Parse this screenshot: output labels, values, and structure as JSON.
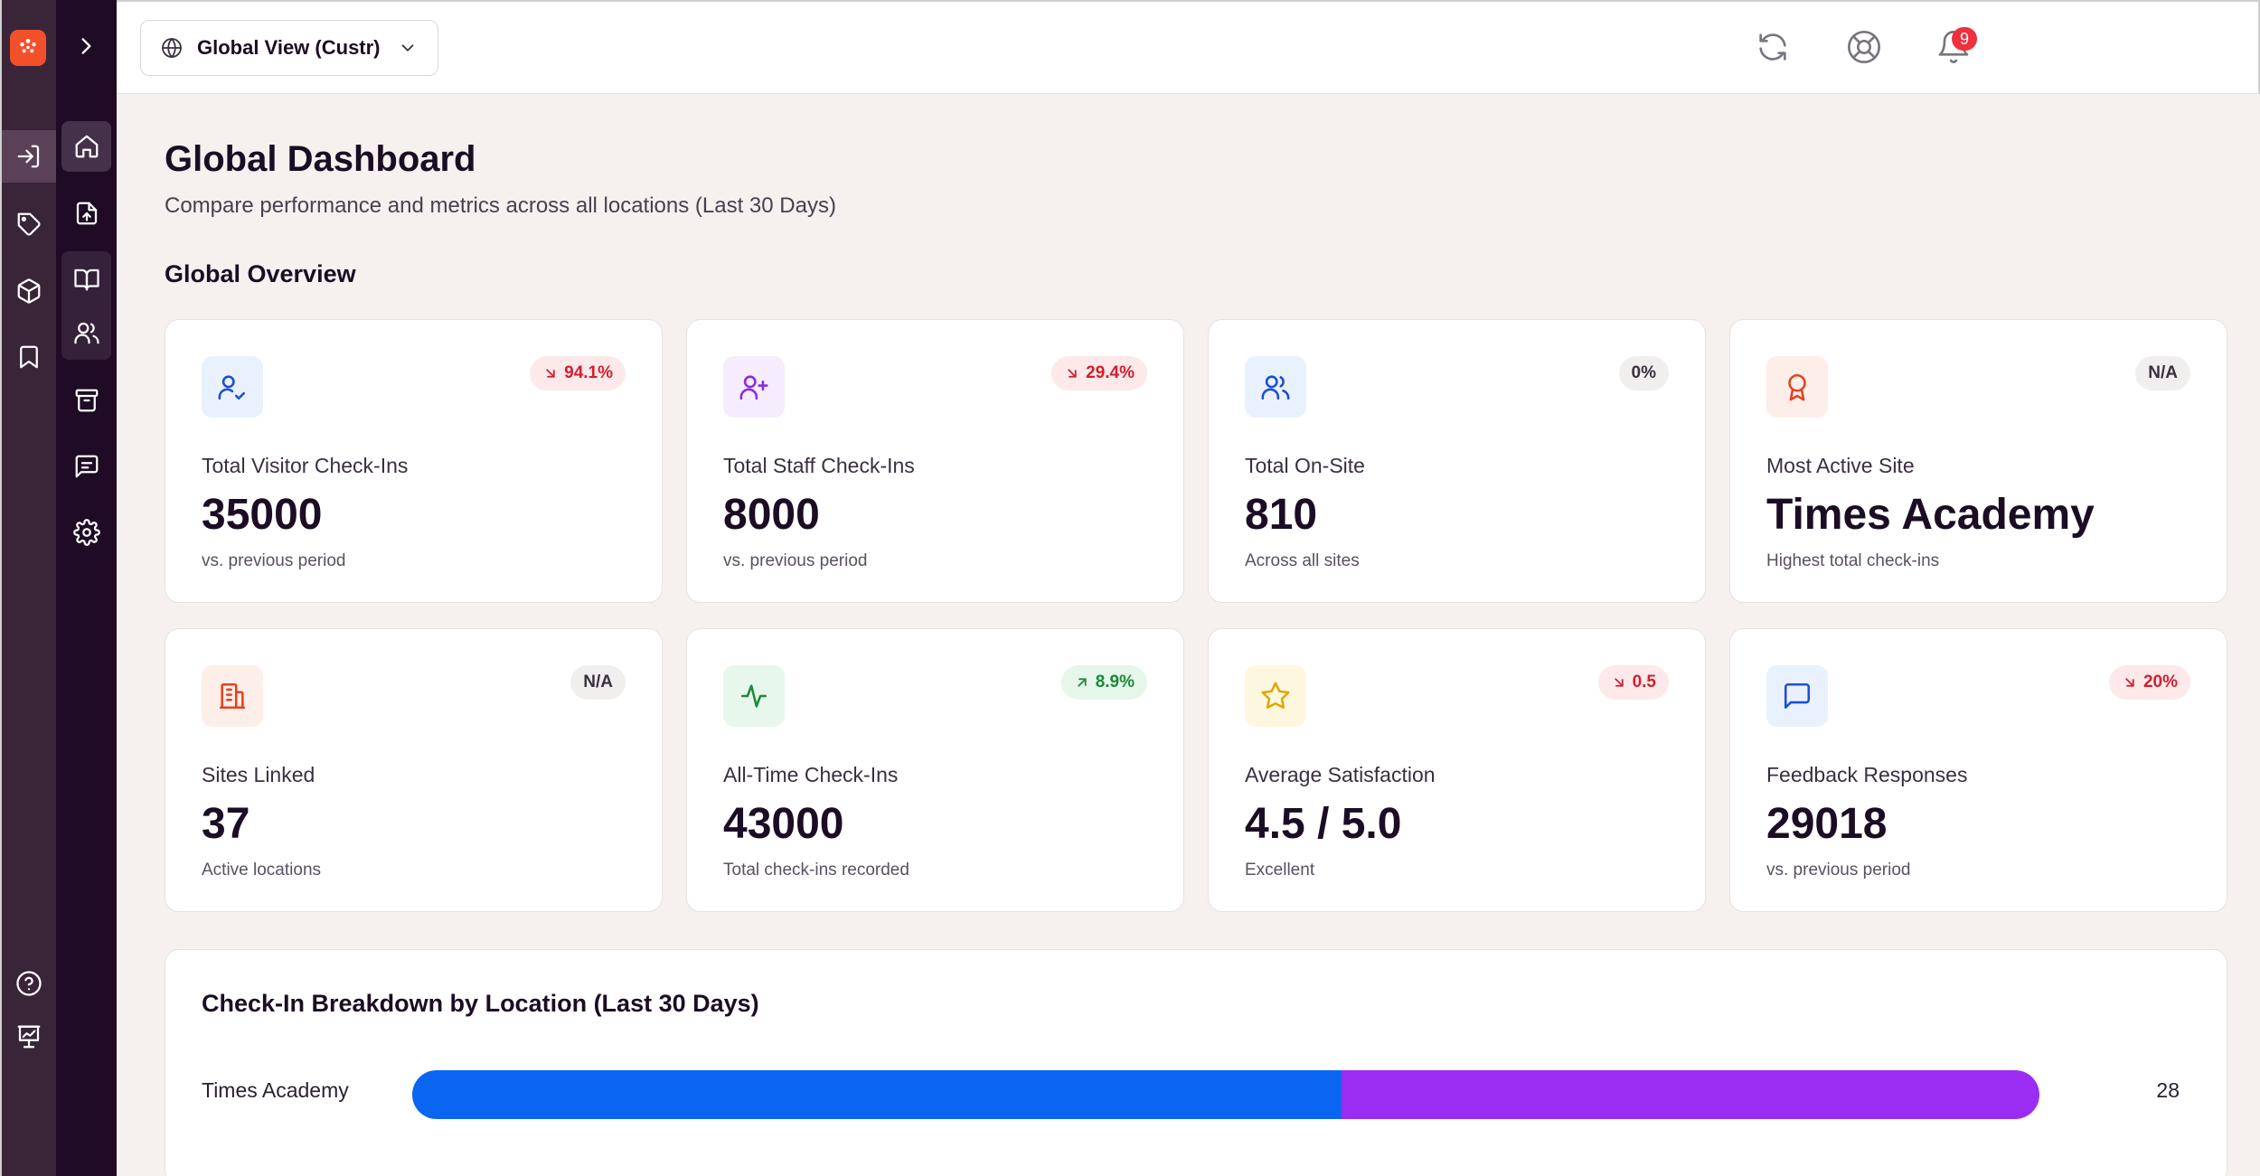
{
  "topbar": {
    "scope_label": "Global View (Custr)",
    "notification_count": "9"
  },
  "page": {
    "title": "Global Dashboard",
    "subtitle": "Compare performance and metrics across all locations (Last 30 Days)",
    "section_title": "Global Overview"
  },
  "cards": [
    {
      "label": "Total Visitor Check-Ins",
      "value": "35000",
      "foot": "vs. previous period",
      "badge": "94.1%",
      "trend": "down",
      "icon": "user-check-icon",
      "icon_color": "#1a4fd6",
      "icon_bg": "#eaf1fe"
    },
    {
      "label": "Total Staff Check-Ins",
      "value": "8000",
      "foot": "vs. previous period",
      "badge": "29.4%",
      "trend": "down",
      "icon": "user-plus-icon",
      "icon_color": "#8a2be2",
      "icon_bg": "#f5ecfd"
    },
    {
      "label": "Total On-Site",
      "value": "810",
      "foot": "Across all sites",
      "badge": "0%",
      "trend": "neutral",
      "icon": "users-icon",
      "icon_color": "#1a4fd6",
      "icon_bg": "#eaf1fe"
    },
    {
      "label": "Most Active Site",
      "value": "Times Academy",
      "foot": "Highest total check-ins",
      "badge": "N/A",
      "trend": "neutral",
      "icon": "award-icon",
      "icon_color": "#e4421f",
      "icon_bg": "#fdeee9"
    },
    {
      "label": "Sites Linked",
      "value": "37",
      "foot": "Active locations",
      "badge": "N/A",
      "trend": "neutral",
      "icon": "building-icon",
      "icon_color": "#e4421f",
      "icon_bg": "#fdeee9"
    },
    {
      "label": "All-Time Check-Ins",
      "value": "43000",
      "foot": "Total check-ins recorded",
      "badge": "8.9%",
      "trend": "up",
      "icon": "activity-icon",
      "icon_color": "#1a8a3a",
      "icon_bg": "#e8f7ec"
    },
    {
      "label": "Average Satisfaction",
      "value": "4.5 / 5.0",
      "foot": "Excellent",
      "badge": "0.5",
      "trend": "down",
      "icon": "star-icon",
      "icon_color": "#e0a800",
      "icon_bg": "#fef7e0"
    },
    {
      "label": "Feedback Responses",
      "value": "29018",
      "foot": "vs. previous period",
      "badge": "20%",
      "trend": "down",
      "icon": "message-square-icon",
      "icon_color": "#1a4fd6",
      "icon_bg": "#eaf1fe"
    }
  ],
  "breakdown": {
    "title": "Check-In Breakdown by Location (Last 30 Days)",
    "rows": [
      {
        "label": "Times Academy",
        "total": "28",
        "segment_a_fraction": 0.571,
        "segment_b_fraction": 0.429
      }
    ],
    "colors": {
      "segment_a": "#0a66f0",
      "segment_b": "#9b2cf2"
    }
  },
  "colors": {
    "sidebar_outer": "#3a2438",
    "sidebar_inner": "#1f0b26",
    "brand": "#f2502a",
    "trend_down": "#d11f2e",
    "trend_up": "#1a8a3a"
  }
}
